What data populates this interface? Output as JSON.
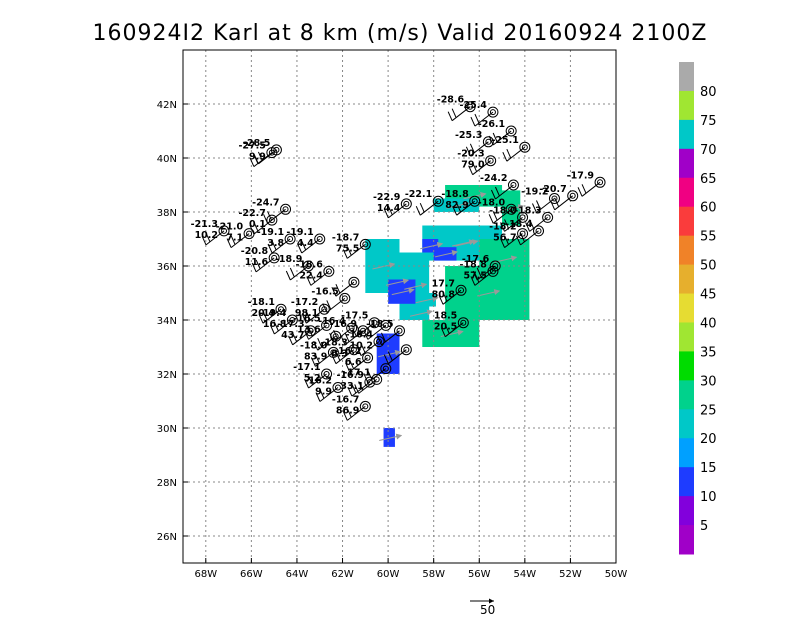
{
  "chart_data": {
    "type": "heatmap",
    "title": "160924I2 Karl at 8 km (m/s) Valid 20160924 2100Z",
    "xlim": [
      -69,
      -50
    ],
    "ylim": [
      25,
      44
    ],
    "x_ticks": [
      -68,
      -66,
      -64,
      -62,
      -60,
      -58,
      -56,
      -54,
      -52,
      -50
    ],
    "x_tick_labels": [
      "68W",
      "66W",
      "64W",
      "62W",
      "60W",
      "58W",
      "56W",
      "54W",
      "52W",
      "50W"
    ],
    "y_ticks": [
      26,
      28,
      30,
      32,
      34,
      36,
      38,
      40,
      42
    ],
    "y_tick_labels": [
      "26N",
      "28N",
      "30N",
      "32N",
      "34N",
      "36N",
      "38N",
      "40N",
      "42N"
    ],
    "grid": true,
    "colorbar": {
      "levels": [
        "5",
        "10",
        "15",
        "20",
        "25",
        "30",
        "35",
        "40",
        "45",
        "50",
        "55",
        "60",
        "65",
        "70",
        "75",
        "80"
      ],
      "colors": [
        "#a000c8",
        "#8200dc",
        "#1e3cff",
        "#00a0ff",
        "#00c8c8",
        "#00d28c",
        "#00dc00",
        "#a0e632",
        "#e6dc32",
        "#e6af2d",
        "#f08228",
        "#fa3c3c",
        "#f00082",
        "#a000c8",
        "#00c8c8",
        "#a0e632",
        "#aaaaaa"
      ]
    },
    "reference_vector": {
      "label": "50"
    },
    "wind_field": [
      {
        "lon": -60.2,
        "lat": 30.0,
        "lon2": -59.7,
        "lat2": 29.3,
        "value": 12
      },
      {
        "lon": -60.5,
        "lat": 33.5,
        "lon2": -59.5,
        "lat2": 32.0,
        "value": 12
      },
      {
        "lon": -60.3,
        "lat": 35.8,
        "lon2": -59.0,
        "lat2": 35.0,
        "value": 12
      },
      {
        "lon": -61.0,
        "lat": 37.0,
        "lon2": -59.5,
        "lat2": 35.0,
        "value": 22
      },
      {
        "lon": -59.5,
        "lat": 36.5,
        "lon2": -58.2,
        "lat2": 34.0,
        "value": 22
      },
      {
        "lon": -58.5,
        "lat": 37.5,
        "lon2": -55.0,
        "lat2": 36.2,
        "value": 22
      },
      {
        "lon": -60.0,
        "lat": 35.5,
        "lon2": -58.8,
        "lat2": 34.6,
        "value": 12
      },
      {
        "lon": -58.0,
        "lat": 36.7,
        "lon2": -57.0,
        "lat2": 36.2,
        "value": 12
      },
      {
        "lon": -58.2,
        "lat": 37.0,
        "lon2": -55.0,
        "lat2": 36.7,
        "value": 20
      },
      {
        "lon": -56.0,
        "lat": 37.0,
        "lon2": -53.8,
        "lat2": 35.5,
        "value": 25
      },
      {
        "lon": -57.5,
        "lat": 36.0,
        "lon2": -53.8,
        "lat2": 34.0,
        "value": 28
      },
      {
        "lon": -58.5,
        "lat": 34.0,
        "lon2": -56.0,
        "lat2": 33.0,
        "value": 25
      },
      {
        "lon": -57.5,
        "lat": 39.0,
        "lon2": -55.0,
        "lat2": 38.2,
        "value": 28
      },
      {
        "lon": -58.0,
        "lat": 38.5,
        "lon2": -56.0,
        "lat2": 38.0,
        "value": 22
      },
      {
        "lon": -55.0,
        "lat": 38.8,
        "lon2": -54.2,
        "lat2": 37.5,
        "value": 28
      },
      {
        "lon": -58.5,
        "lat": 37.0,
        "lon2": -57.8,
        "lat2": 36.5,
        "value": 12
      },
      {
        "lon": -59.0,
        "lat": 34.5,
        "lon2": -58.2,
        "lat2": 34.0,
        "value": 22
      },
      {
        "lon": -58.8,
        "lat": 35.0,
        "lon2": -57.9,
        "lat2": 34.5,
        "value": 22
      }
    ],
    "observations": [
      {
        "lon": -56.4,
        "lat": 41.9,
        "labels": [
          "-28.6"
        ]
      },
      {
        "lon": -55.4,
        "lat": 41.7,
        "labels": [
          "-25.4"
        ]
      },
      {
        "lon": -54.6,
        "lat": 41.0,
        "labels": [
          "-26.1"
        ]
      },
      {
        "lon": -55.6,
        "lat": 40.6,
        "labels": [
          "-25.3"
        ]
      },
      {
        "lon": -54.0,
        "lat": 40.4,
        "labels": [
          "-25.1"
        ]
      },
      {
        "lon": -55.5,
        "lat": 39.9,
        "labels": [
          "-20.3",
          "79.0"
        ]
      },
      {
        "lon": -54.5,
        "lat": 39.0,
        "labels": [
          "-24.2"
        ]
      },
      {
        "lon": -56.2,
        "lat": 38.4,
        "labels": [
          "-18.8",
          "82.9"
        ]
      },
      {
        "lon": -57.8,
        "lat": 38.4,
        "labels": [
          "-22.1"
        ]
      },
      {
        "lon": -59.2,
        "lat": 38.3,
        "labels": [
          "-22.9",
          "14.4"
        ]
      },
      {
        "lon": -54.6,
        "lat": 38.1,
        "labels": [
          "-18.0"
        ]
      },
      {
        "lon": -54.1,
        "lat": 37.8,
        "labels": [
          "-18.0"
        ]
      },
      {
        "lon": -53.4,
        "lat": 37.3,
        "labels": [
          "-18.4"
        ]
      },
      {
        "lon": -53.0,
        "lat": 37.8,
        "labels": [
          "-18.3"
        ]
      },
      {
        "lon": -52.7,
        "lat": 38.5,
        "labels": [
          "-19.2"
        ]
      },
      {
        "lon": -50.7,
        "lat": 39.1,
        "labels": [
          "-17.9"
        ]
      },
      {
        "lon": -51.9,
        "lat": 38.6,
        "labels": [
          "-20.7"
        ]
      },
      {
        "lon": -54.1,
        "lat": 37.2,
        "labels": [
          "-18.2",
          "56.7"
        ]
      },
      {
        "lon": -55.3,
        "lat": 36.0,
        "labels": [
          "-17.6"
        ]
      },
      {
        "lon": -55.4,
        "lat": 35.8,
        "labels": [
          "-18.8",
          "57.5"
        ]
      },
      {
        "lon": -56.8,
        "lat": 35.1,
        "labels": [
          "17.7",
          "80.8"
        ]
      },
      {
        "lon": -56.7,
        "lat": 33.9,
        "labels": [
          "18.5",
          "20.5"
        ]
      },
      {
        "lon": -61.0,
        "lat": 36.8,
        "labels": [
          "-18.7",
          "75.5"
        ]
      },
      {
        "lon": -63.0,
        "lat": 37.0,
        "labels": [
          "-19.1",
          "4.4"
        ]
      },
      {
        "lon": -64.3,
        "lat": 37.0,
        "labels": [
          "-19.1",
          "3.8"
        ]
      },
      {
        "lon": -65.1,
        "lat": 37.7,
        "labels": [
          "-22.7",
          "0.1"
        ]
      },
      {
        "lon": -64.5,
        "lat": 38.1,
        "labels": [
          "-24.7"
        ]
      },
      {
        "lon": -65.0,
        "lat": 36.3,
        "labels": [
          "-20.8",
          "11.6"
        ]
      },
      {
        "lon": -66.1,
        "lat": 37.2,
        "labels": [
          "-21.0",
          "7.1"
        ]
      },
      {
        "lon": -67.2,
        "lat": 37.3,
        "labels": [
          "-21.3",
          "10.2"
        ]
      },
      {
        "lon": -64.9,
        "lat": 40.3,
        "labels": [
          "-28.5"
        ]
      },
      {
        "lon": -65.1,
        "lat": 40.2,
        "labels": [
          "-27.5",
          "9.9"
        ]
      },
      {
        "lon": -63.5,
        "lat": 36.0,
        "labels": [
          "-18.9"
        ]
      },
      {
        "lon": -62.6,
        "lat": 35.8,
        "labels": [
          "-18.6",
          "22.4"
        ]
      },
      {
        "lon": -61.5,
        "lat": 35.4,
        "labels": []
      },
      {
        "lon": -61.9,
        "lat": 34.8,
        "labels": [
          "-16.5"
        ]
      },
      {
        "lon": -62.8,
        "lat": 34.4,
        "labels": [
          "-17.2",
          "98.1"
        ]
      },
      {
        "lon": -64.7,
        "lat": 34.4,
        "labels": [
          "-18.1",
          "20.4"
        ]
      },
      {
        "lon": -64.2,
        "lat": 34.0,
        "labels": [
          "-19.4",
          "16.8"
        ]
      },
      {
        "lon": -63.4,
        "lat": 33.6,
        "labels": [
          "-17.3",
          "43.7"
        ]
      },
      {
        "lon": -62.7,
        "lat": 33.8,
        "labels": [
          "-16.5",
          "13.6"
        ]
      },
      {
        "lon": -62.3,
        "lat": 33.4,
        "labels": []
      },
      {
        "lon": -61.6,
        "lat": 33.7,
        "labels": [
          "-16.4"
        ]
      },
      {
        "lon": -61.1,
        "lat": 33.6,
        "labels": [
          "-16.9"
        ]
      },
      {
        "lon": -60.6,
        "lat": 33.9,
        "labels": [
          "-17.5"
        ]
      },
      {
        "lon": -60.1,
        "lat": 33.8,
        "labels": []
      },
      {
        "lon": -59.5,
        "lat": 33.6,
        "labels": [
          "-18.5"
        ]
      },
      {
        "lon": -59.2,
        "lat": 32.9,
        "labels": []
      },
      {
        "lon": -62.4,
        "lat": 32.8,
        "labels": [
          "-18.0",
          "83.9"
        ]
      },
      {
        "lon": -61.5,
        "lat": 32.9,
        "labels": [
          "-18.3",
          "6.3"
        ]
      },
      {
        "lon": -60.9,
        "lat": 32.6,
        "labels": [
          "-16.2",
          "6.6"
        ]
      },
      {
        "lon": -60.4,
        "lat": 33.2,
        "labels": [
          "-16.4",
          "10.2"
        ]
      },
      {
        "lon": -60.1,
        "lat": 32.2,
        "labels": []
      },
      {
        "lon": -60.5,
        "lat": 31.8,
        "labels": [
          "-17.1"
        ]
      },
      {
        "lon": -60.8,
        "lat": 31.7,
        "labels": [
          "-16.9",
          "33.1"
        ]
      },
      {
        "lon": -62.7,
        "lat": 32.0,
        "labels": [
          "-17.1",
          "5.2"
        ]
      },
      {
        "lon": -62.2,
        "lat": 31.5,
        "labels": [
          "-16.2",
          "9.9"
        ]
      },
      {
        "lon": -61.0,
        "lat": 30.8,
        "labels": [
          "-16.7",
          "86.9"
        ]
      }
    ]
  }
}
